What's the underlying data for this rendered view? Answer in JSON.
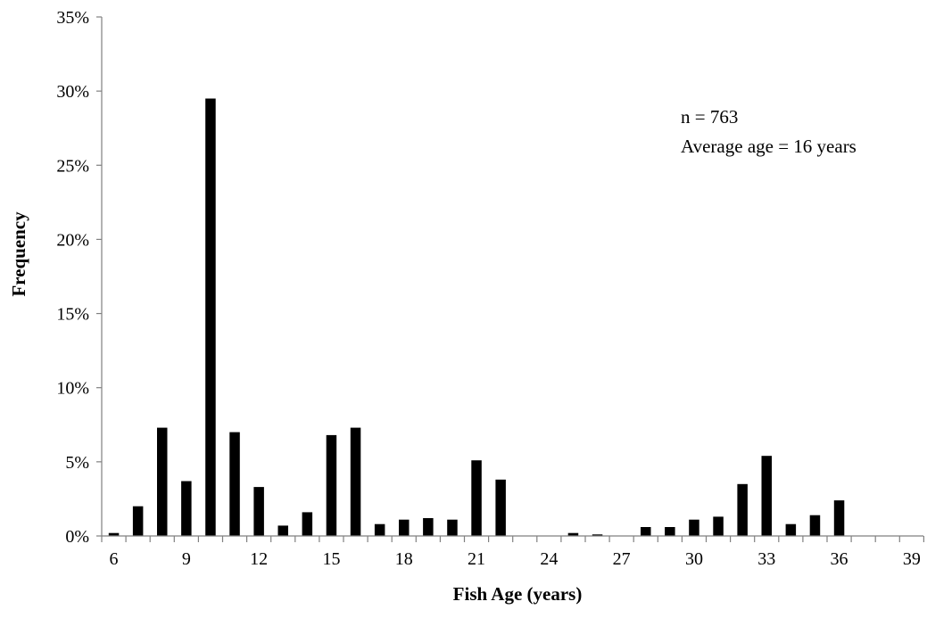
{
  "chart_data": {
    "type": "bar",
    "title": "",
    "xlabel": "Fish Age (years)",
    "ylabel": "Frequency",
    "x": [
      6,
      7,
      8,
      9,
      10,
      11,
      12,
      13,
      14,
      15,
      16,
      17,
      18,
      19,
      20,
      21,
      22,
      23,
      24,
      25,
      26,
      27,
      28,
      29,
      30,
      31,
      32,
      33,
      34,
      35,
      36,
      37,
      38,
      39
    ],
    "values": [
      0.2,
      2.0,
      7.3,
      3.7,
      29.5,
      7.0,
      3.3,
      0.7,
      1.6,
      6.8,
      7.3,
      0.8,
      1.1,
      1.2,
      1.1,
      5.1,
      3.8,
      0,
      0,
      0.2,
      0.1,
      0,
      0.6,
      0.6,
      1.1,
      1.3,
      3.5,
      5.4,
      0.8,
      1.4,
      2.4,
      0,
      0,
      0
    ],
    "xlim": [
      6,
      39
    ],
    "ylim": [
      0,
      35
    ],
    "x_ticks": [
      "6",
      "9",
      "12",
      "15",
      "18",
      "21",
      "24",
      "27",
      "30",
      "33",
      "36",
      "39"
    ],
    "y_ticks": [
      "0%",
      "5%",
      "10%",
      "15%",
      "20%",
      "25%",
      "30%",
      "35%"
    ],
    "grid": false,
    "legend": "none",
    "bar_color": "#000000",
    "annotations": [
      "n = 763",
      "Average age = 16 years"
    ]
  }
}
